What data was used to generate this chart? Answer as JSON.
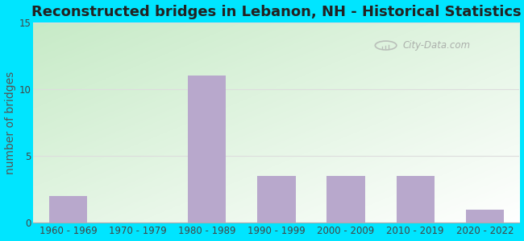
{
  "title": "Reconstructed bridges in Lebanon, NH - Historical Statistics",
  "categories": [
    "1960 - 1969",
    "1970 - 1979",
    "1980 - 1989",
    "1990 - 1999",
    "2000 - 2009",
    "2010 - 2019",
    "2020 - 2022"
  ],
  "values": [
    2,
    0,
    11,
    3.5,
    3.5,
    3.5,
    1
  ],
  "bar_color": "#b8a8cc",
  "ylabel": "number of bridges",
  "ylim": [
    0,
    15
  ],
  "yticks": [
    0,
    5,
    10,
    15
  ],
  "background_outer": "#00e5ff",
  "title_fontsize": 13,
  "axis_label_fontsize": 10,
  "tick_fontsize": 8.5,
  "watermark_text": "City-Data.com",
  "grid_color": "#dddddd",
  "bar_width": 0.55
}
